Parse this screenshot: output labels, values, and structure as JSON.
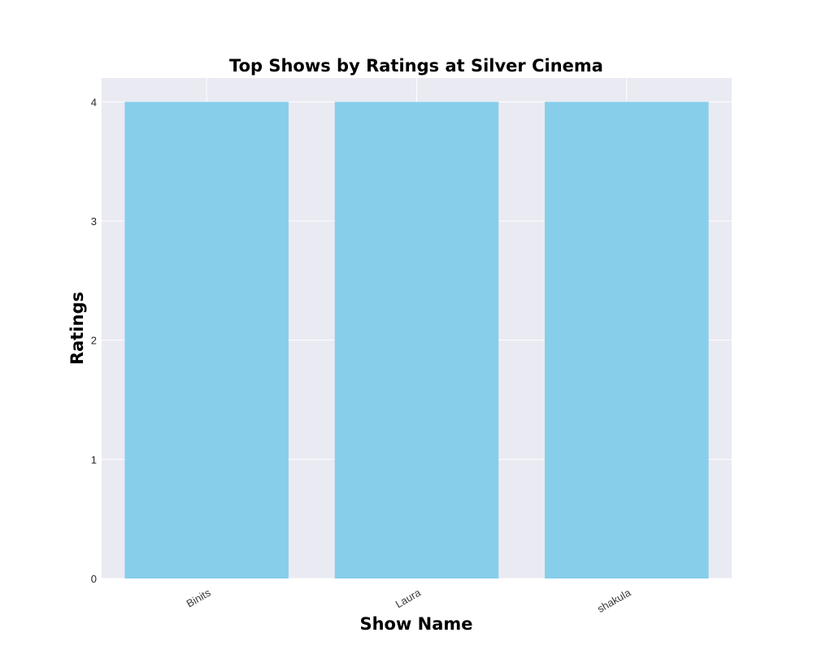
{
  "chart_data": {
    "type": "bar",
    "title": "Top Shows by Ratings at Silver Cinema",
    "xlabel": "Show Name",
    "ylabel": "Ratings",
    "categories": [
      "Binits",
      "Laura",
      "shakula"
    ],
    "values": [
      4,
      4,
      4
    ],
    "yticks": [
      "0",
      "1",
      "2",
      "3",
      "4"
    ],
    "ylim": [
      0,
      4.2
    ],
    "grid": true,
    "legend": "none",
    "colors": {
      "bar": "#87ceeb",
      "plot_background": "#eaeaf2",
      "grid": "#ffffff"
    }
  }
}
